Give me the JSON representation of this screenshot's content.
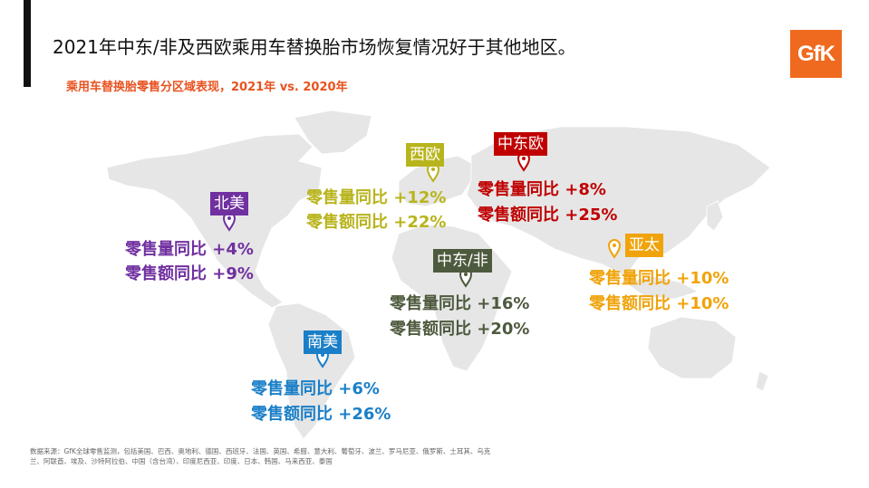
{
  "title": "2021年中东/非及西欧乘用车替换胎市场恢复情况好于其他地区。",
  "subtitle": "乘用车替换胎零售分区域表现，2021年 vs. 2020年",
  "logo_text": "GfK",
  "chart_data": {
    "type": "map",
    "regions": [
      {
        "name": "北美",
        "color": "#7030a0",
        "volume_label": "零售量同比 +4%",
        "value_label": "零售额同比 +9%",
        "volume_yoy": 4,
        "value_yoy": 9
      },
      {
        "name": "西欧",
        "color": "#b8b41c",
        "volume_label": "零售量同比 +12%",
        "value_label": "零售额同比 +22%",
        "volume_yoy": 12,
        "value_yoy": 22
      },
      {
        "name": "中东欧",
        "color": "#c00000",
        "volume_label": "零售量同比 +8%",
        "value_label": "零售额同比 +25%",
        "volume_yoy": 8,
        "value_yoy": 25
      },
      {
        "name": "亚太",
        "color": "#f0a30a",
        "volume_label": "零售量同比 +10%",
        "value_label": "零售额同比 +10%",
        "volume_yoy": 10,
        "value_yoy": 10
      },
      {
        "name": "中东/非",
        "color": "#4e5a3e",
        "volume_label": "零售量同比 +16%",
        "value_label": "零售额同比 +20%",
        "volume_yoy": 16,
        "value_yoy": 20
      },
      {
        "name": "南美",
        "color": "#1a7fc8",
        "volume_label": "零售量同比 +6%",
        "value_label": "零售额同比 +26%",
        "volume_yoy": 6,
        "value_yoy": 26
      }
    ]
  },
  "footnote": "数据来源：GfK全球零售监测，包括美国、巴西、奥地利、德国、西班牙、法国、英国、希腊、意大利、葡萄牙、波兰、罗马尼亚、俄罗斯、土耳其、乌克兰、阿联酋、埃及、沙特阿拉伯、中国（含台湾）、印度尼西亚、印度、日本、韩国、马来西亚、泰国"
}
